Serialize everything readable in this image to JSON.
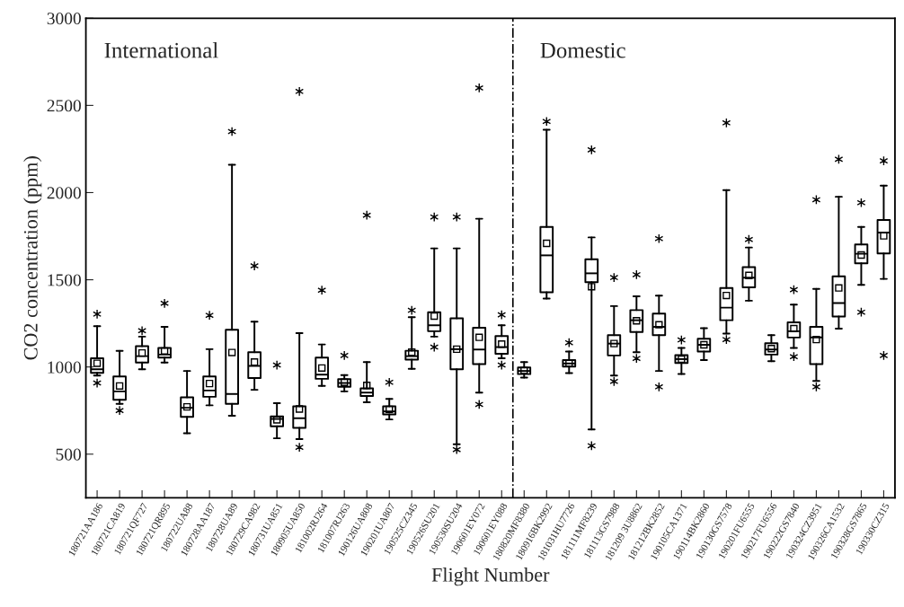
{
  "chart_data": {
    "type": "box",
    "xlabel": "Flight Number",
    "ylabel": "CO2 concentration (ppm)",
    "annotations": [
      "International",
      "Domestic"
    ],
    "categories": [
      "180721AA186",
      "180721CA819",
      "180721QF727",
      "180721QR895",
      "180722UA88",
      "180728AA187",
      "180728UA89",
      "180729CA982",
      "180731UA851",
      "180905UA850",
      "181002RJ264",
      "181007RJ263",
      "190126UA808",
      "190201UA807",
      "190525CZ345",
      "190526SU201",
      "190530SU204",
      "190601EY072",
      "190601EY088",
      "180820MF8380",
      "180916BK2992",
      "181031HU7726",
      "181111MF8239",
      "181113GS7988",
      "181209 3U8862",
      "181212BK2852",
      "190105CA1371",
      "190114BK2860",
      "190130GS7578",
      "190201FU6555",
      "190217FU6556",
      "190222GS7840",
      "190324CZ3951",
      "190326CA1532",
      "190328GS7865",
      "190330CZ315"
    ],
    "boxes": [
      {
        "low": 951,
        "q1": 966,
        "median": 987,
        "q3": 1050,
        "high": 1234,
        "mean": 1021,
        "outliers": [
          1303,
          908
        ]
      },
      {
        "low": 788,
        "q1": 812,
        "median": 860,
        "q3": 946,
        "high": 1092,
        "mean": 891,
        "outliers": [
          750
        ]
      },
      {
        "low": 987,
        "q1": 1025,
        "median": 1062,
        "q3": 1119,
        "high": 1174,
        "mean": 1080,
        "outliers": [
          1208
        ]
      },
      {
        "low": 1025,
        "q1": 1054,
        "median": 1071,
        "q3": 1109,
        "high": 1230,
        "mean": 1092,
        "outliers": [
          1365
        ]
      },
      {
        "low": 620,
        "q1": 714,
        "median": 766,
        "q3": 826,
        "high": 977,
        "mean": 771
      },
      {
        "low": 780,
        "q1": 829,
        "median": 865,
        "q3": 946,
        "high": 1102,
        "mean": 905,
        "outliers": [
          1296
        ]
      },
      {
        "low": 720,
        "q1": 788,
        "median": 845,
        "q3": 1213,
        "high": 2160,
        "mean": 1083,
        "outliers": [
          2350
        ]
      },
      {
        "low": 869,
        "q1": 937,
        "median": 1006,
        "q3": 1085,
        "high": 1260,
        "mean": 1028,
        "outliers": [
          1580
        ]
      },
      {
        "low": 591,
        "q1": 660,
        "median": 702,
        "q3": 716,
        "high": 792,
        "mean": 697,
        "outliers": [
          1011
        ]
      },
      {
        "low": 586,
        "q1": 651,
        "median": 706,
        "q3": 774,
        "high": 1194,
        "mean": 759,
        "outliers": [
          2580,
          539
        ]
      },
      {
        "low": 891,
        "q1": 932,
        "median": 956,
        "q3": 1054,
        "high": 1129,
        "mean": 994,
        "outliers": [
          1440
        ]
      },
      {
        "low": 860,
        "q1": 886,
        "median": 908,
        "q3": 930,
        "high": 953,
        "mean": 912,
        "outliers": [
          1066
        ]
      },
      {
        "low": 797,
        "q1": 834,
        "median": 853,
        "q3": 877,
        "high": 1028,
        "mean": 894,
        "outliers": [
          1870
        ]
      },
      {
        "low": 699,
        "q1": 728,
        "median": 745,
        "q3": 774,
        "high": 817,
        "mean": 757,
        "outliers": [
          912
        ]
      },
      {
        "low": 989,
        "q1": 1042,
        "median": 1062,
        "q3": 1093,
        "high": 1285,
        "mean": 1085,
        "outliers": [
          1325
        ]
      },
      {
        "low": 1174,
        "q1": 1205,
        "median": 1239,
        "q3": 1314,
        "high": 1680,
        "mean": 1292,
        "outliers": [
          1860,
          1114
        ]
      },
      {
        "low": 557,
        "q1": 987,
        "median": 1102,
        "q3": 1279,
        "high": 1680,
        "mean": 1102,
        "outliers": [
          1860,
          526
        ]
      },
      {
        "low": 853,
        "q1": 1016,
        "median": 1100,
        "q3": 1225,
        "high": 1850,
        "mean": 1170,
        "outliers": [
          2600,
          785
        ]
      },
      {
        "low": 1050,
        "q1": 1076,
        "median": 1114,
        "q3": 1177,
        "high": 1239,
        "mean": 1131,
        "outliers": [
          1299,
          1011
        ]
      },
      {
        "low": 939,
        "q1": 959,
        "median": 977,
        "q3": 997,
        "high": 1028,
        "mean": 980
      },
      {
        "low": 1392,
        "q1": 1428,
        "median": 1640,
        "q3": 1803,
        "high": 2360,
        "mean": 1709,
        "outliers": [
          2408
        ]
      },
      {
        "low": 965,
        "q1": 1002,
        "median": 1020,
        "q3": 1040,
        "high": 1088,
        "mean": 1021,
        "outliers": [
          1139
        ]
      },
      {
        "low": 642,
        "q1": 1486,
        "median": 1537,
        "q3": 1618,
        "high": 1743,
        "mean": 1460,
        "outliers": [
          2245,
          548
        ]
      },
      {
        "low": 951,
        "q1": 1066,
        "median": 1134,
        "q3": 1182,
        "high": 1349,
        "mean": 1134,
        "outliers": [
          1513,
          917
        ]
      },
      {
        "low": 1085,
        "q1": 1200,
        "median": 1268,
        "q3": 1326,
        "high": 1405,
        "mean": 1265,
        "outliers": [
          1529,
          1049
        ]
      },
      {
        "low": 977,
        "q1": 1182,
        "median": 1230,
        "q3": 1306,
        "high": 1409,
        "mean": 1242,
        "outliers": [
          1736,
          886
        ]
      },
      {
        "low": 960,
        "q1": 1023,
        "median": 1045,
        "q3": 1068,
        "high": 1109,
        "mean": 1045,
        "outliers": [
          1155
        ]
      },
      {
        "low": 1040,
        "q1": 1088,
        "median": 1127,
        "q3": 1162,
        "high": 1222,
        "mean": 1127
      },
      {
        "low": 1191,
        "q1": 1268,
        "median": 1340,
        "q3": 1453,
        "high": 2014,
        "mean": 1410,
        "outliers": [
          2400,
          1157
        ]
      },
      {
        "low": 1380,
        "q1": 1457,
        "median": 1512,
        "q3": 1572,
        "high": 1685,
        "mean": 1525,
        "outliers": [
          1731
        ]
      },
      {
        "low": 1033,
        "q1": 1071,
        "median": 1100,
        "q3": 1136,
        "high": 1182,
        "mean": 1105
      },
      {
        "low": 1109,
        "q1": 1169,
        "median": 1205,
        "q3": 1256,
        "high": 1357,
        "mean": 1220,
        "outliers": [
          1443,
          1059
        ]
      },
      {
        "low": 920,
        "q1": 1016,
        "median": 1170,
        "q3": 1230,
        "high": 1448,
        "mean": 1157,
        "outliers": [
          1959,
          886
        ]
      },
      {
        "low": 1220,
        "q1": 1289,
        "median": 1366,
        "q3": 1520,
        "high": 1976,
        "mean": 1453,
        "outliers": [
          2191
        ]
      },
      {
        "low": 1471,
        "q1": 1594,
        "median": 1649,
        "q3": 1702,
        "high": 1803,
        "mean": 1642,
        "outliers": [
          1942,
          1314
        ]
      },
      {
        "low": 1505,
        "q1": 1651,
        "median": 1771,
        "q3": 1843,
        "high": 2040,
        "mean": 1752,
        "outliers": [
          2182,
          1066
        ]
      }
    ],
    "ylim": [
      250,
      3000
    ],
    "yticks": [
      500,
      1000,
      1500,
      2000,
      2500,
      3000
    ],
    "grid": false,
    "legend": false
  }
}
